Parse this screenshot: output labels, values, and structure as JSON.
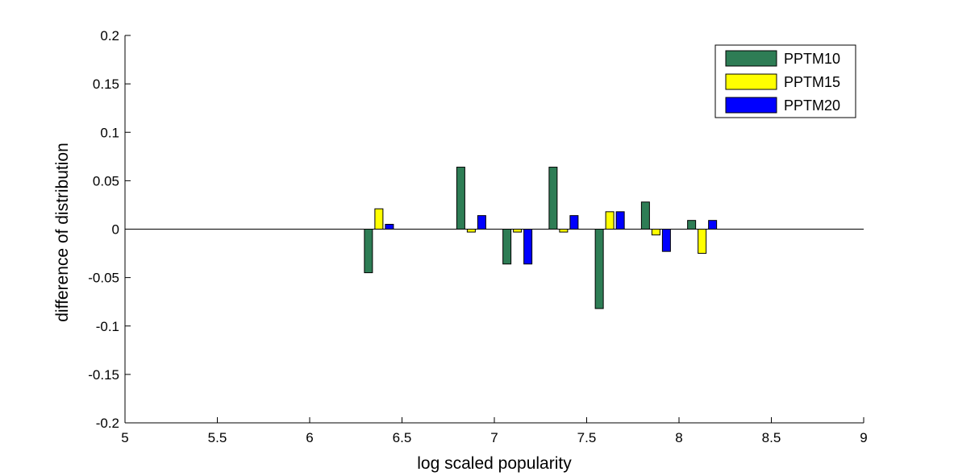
{
  "chart_data": {
    "type": "bar",
    "xlabel": "log scaled popularity",
    "ylabel": "difference of distribution",
    "xlim": [
      5,
      9
    ],
    "ylim": [
      -0.2,
      0.2
    ],
    "xticks": [
      "5",
      "5.5",
      "6",
      "6.5",
      "7",
      "7.5",
      "8",
      "8.5",
      "9"
    ],
    "yticks": [
      "0.2",
      "0.15",
      "0.1",
      "0.05",
      "0",
      "-0.05",
      "-0.1",
      "-0.15",
      "-0.2"
    ],
    "grid": false,
    "legend_position": "top-right",
    "categories": [
      6.375,
      6.875,
      7.125,
      7.375,
      7.625,
      7.875,
      8.125
    ],
    "series": [
      {
        "name": "PPTM10",
        "color": "#2e7d55",
        "values": [
          -0.045,
          0.064,
          -0.036,
          0.064,
          -0.082,
          0.028,
          0.009
        ]
      },
      {
        "name": "PPTM15",
        "color": "#ffff00",
        "values": [
          0.021,
          -0.003,
          -0.003,
          -0.003,
          0.018,
          -0.006,
          -0.025
        ]
      },
      {
        "name": "PPTM20",
        "color": "#0000ff",
        "values": [
          0.005,
          0.014,
          -0.036,
          0.014,
          0.018,
          -0.023,
          0.009
        ]
      }
    ]
  }
}
